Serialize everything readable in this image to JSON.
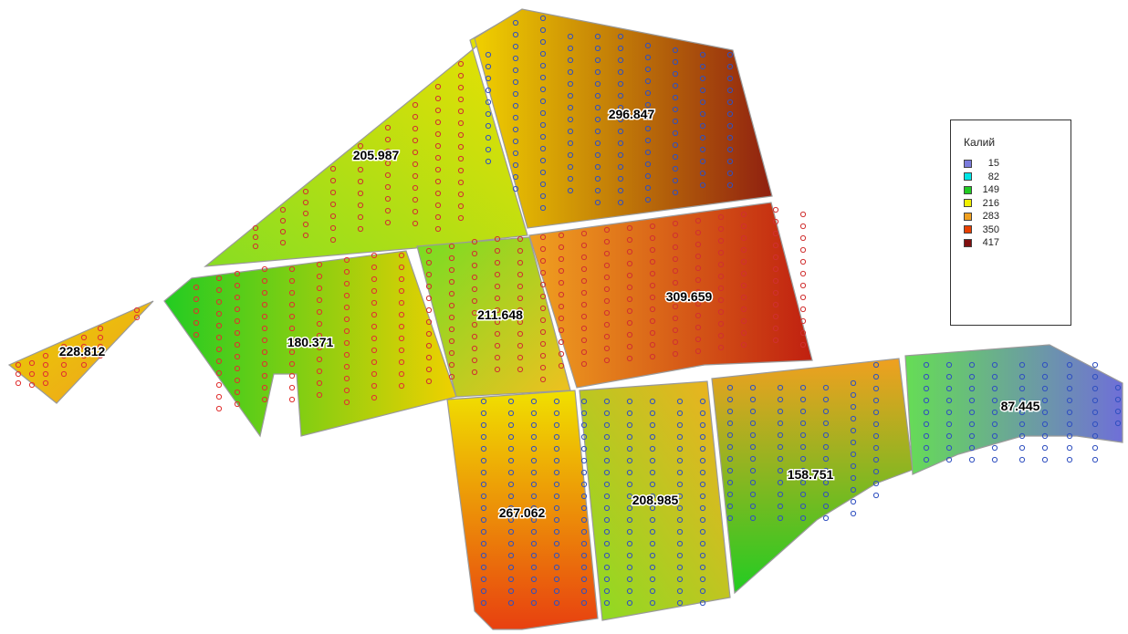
{
  "legend": {
    "title": "Калий",
    "items": [
      {
        "value": "15",
        "color": "#7b7bdc"
      },
      {
        "value": "82",
        "color": "#00e6e6"
      },
      {
        "value": "149",
        "color": "#22cc22"
      },
      {
        "value": "216",
        "color": "#f0f000"
      },
      {
        "value": "283",
        "color": "#f0a020"
      },
      {
        "value": "350",
        "color": "#e84000"
      },
      {
        "value": "417",
        "color": "#801010"
      }
    ]
  },
  "fields": [
    {
      "label": "228.812",
      "value": 228.812,
      "colors": [
        "#e8d000",
        "#f0a020"
      ]
    },
    {
      "label": "205.987",
      "value": 205.987,
      "colors": [
        "#88dd22",
        "#f0e000"
      ]
    },
    {
      "label": "296.847",
      "value": 296.847,
      "colors": [
        "#f0d000",
        "#902010"
      ]
    },
    {
      "label": "180.371",
      "value": 180.371,
      "colors": [
        "#22cc22",
        "#f0d000"
      ]
    },
    {
      "label": "211.648",
      "value": 211.648,
      "colors": [
        "#77dd22",
        "#f0c020"
      ]
    },
    {
      "label": "309.659",
      "value": 309.659,
      "colors": [
        "#f0a020",
        "#c02010"
      ]
    },
    {
      "label": "267.062",
      "value": 267.062,
      "colors": [
        "#f0e000",
        "#e84010"
      ]
    },
    {
      "label": "208.985",
      "value": 208.985,
      "colors": [
        "#f0b020",
        "#88dd22"
      ]
    },
    {
      "label": "158.751",
      "value": 158.751,
      "colors": [
        "#f0a020",
        "#22cc22"
      ]
    },
    {
      "label": "87.445",
      "value": 87.445,
      "colors": [
        "#66dd55",
        "#6f6fd8"
      ]
    }
  ]
}
